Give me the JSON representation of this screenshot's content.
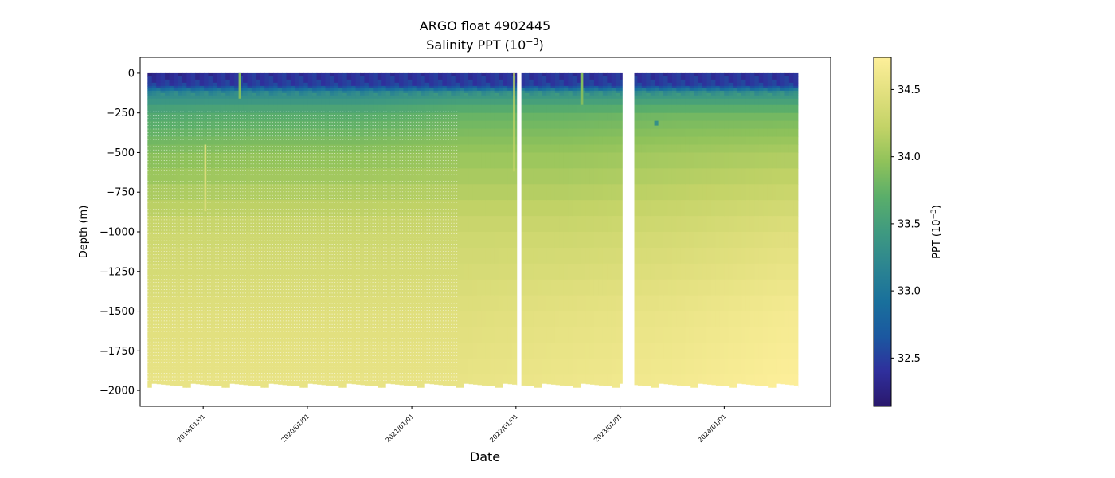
{
  "chart_data": {
    "type": "heatmap",
    "title": "ARGO float 4902445",
    "subtitle": "Salinity PPT (10",
    "subtitle_sup": "−3",
    "subtitle_tail": ")",
    "xlabel": "Date",
    "ylabel": "Depth (m)",
    "colorbar_label": "PPT (10",
    "colorbar_label_sup": "−3",
    "colorbar_label_tail": ")",
    "colormap": "haline",
    "colormap_stops": [
      "#2a186c",
      "#2f2f9c",
      "#1b58a0",
      "#19709c",
      "#2c8591",
      "#3f9a80",
      "#5aae6a",
      "#8fc25a",
      "#c3d367",
      "#e2e07f",
      "#fdef9a"
    ],
    "color_range": [
      32.14,
      34.74
    ],
    "x_range": [
      "2018-05-25",
      "2025-01-08"
    ],
    "y_range": [
      -2100,
      100
    ],
    "x_ticks": [
      {
        "date": "2019-01-01",
        "label": "2019/01/01"
      },
      {
        "date": "2020-01-01",
        "label": "2020/01/01"
      },
      {
        "date": "2021-01-01",
        "label": "2021/01/01"
      },
      {
        "date": "2022-01-01",
        "label": "2022/01/01"
      },
      {
        "date": "2023-01-01",
        "label": "2023/01/01"
      },
      {
        "date": "2024-01-01",
        "label": "2024/01/01"
      }
    ],
    "y_ticks": [
      {
        "value": 0,
        "label": "0"
      },
      {
        "value": -250,
        "label": "−250"
      },
      {
        "value": -500,
        "label": "−500"
      },
      {
        "value": -750,
        "label": "−750"
      },
      {
        "value": -1000,
        "label": "−1000"
      },
      {
        "value": -1250,
        "label": "−1250"
      },
      {
        "value": -1500,
        "label": "−1500"
      },
      {
        "value": -1750,
        "label": "−1750"
      },
      {
        "value": -2000,
        "label": "−2000"
      }
    ],
    "colorbar_ticks": [
      {
        "value": 32.5,
        "label": "32.5"
      },
      {
        "value": 33.0,
        "label": "33.0"
      },
      {
        "value": 33.5,
        "label": "33.5"
      },
      {
        "value": 34.0,
        "label": "34.0"
      },
      {
        "value": 34.5,
        "label": "34.5"
      }
    ],
    "data_time_range": [
      "2018-06-20",
      "2024-09-15"
    ],
    "max_depth": -1980,
    "data_gaps": [
      {
        "start": "2022-01-05",
        "end": "2022-01-20"
      },
      {
        "start": "2023-01-10",
        "end": "2023-02-20"
      }
    ],
    "sparse_until": "2021-06-15",
    "profiles": [
      {
        "date": "2018-07-01",
        "salinity": [
          [
            0,
            32.3
          ],
          [
            -80,
            32.5
          ],
          [
            -120,
            33.2
          ],
          [
            -250,
            33.6
          ],
          [
            -500,
            33.9
          ],
          [
            -1000,
            34.3
          ],
          [
            -1500,
            34.45
          ],
          [
            -2000,
            34.55
          ]
        ]
      },
      {
        "date": "2019-07-01",
        "salinity": [
          [
            0,
            32.4
          ],
          [
            -80,
            32.5
          ],
          [
            -120,
            33.2
          ],
          [
            -250,
            33.65
          ],
          [
            -500,
            33.95
          ],
          [
            -1000,
            34.3
          ],
          [
            -1500,
            34.45
          ],
          [
            -2000,
            34.55
          ]
        ]
      },
      {
        "date": "2020-07-01",
        "salinity": [
          [
            0,
            32.4
          ],
          [
            -80,
            32.5
          ],
          [
            -120,
            33.2
          ],
          [
            -250,
            33.65
          ],
          [
            -500,
            33.95
          ],
          [
            -1000,
            34.3
          ],
          [
            -1500,
            34.45
          ],
          [
            -2000,
            34.55
          ]
        ]
      },
      {
        "date": "2021-07-01",
        "salinity": [
          [
            0,
            32.4
          ],
          [
            -80,
            32.5
          ],
          [
            -120,
            33.3
          ],
          [
            -250,
            33.75
          ],
          [
            -500,
            34.0
          ],
          [
            -1000,
            34.3
          ],
          [
            -1500,
            34.45
          ],
          [
            -2000,
            34.55
          ]
        ]
      },
      {
        "date": "2022-07-01",
        "salinity": [
          [
            0,
            32.4
          ],
          [
            -80,
            32.5
          ],
          [
            -120,
            33.3
          ],
          [
            -250,
            33.75
          ],
          [
            -500,
            34.0
          ],
          [
            -1000,
            34.3
          ],
          [
            -1500,
            34.5
          ],
          [
            -2000,
            34.6
          ]
        ]
      },
      {
        "date": "2023-07-01",
        "salinity": [
          [
            0,
            32.4
          ],
          [
            -80,
            32.5
          ],
          [
            -120,
            33.3
          ],
          [
            -250,
            33.8
          ],
          [
            -500,
            34.05
          ],
          [
            -1000,
            34.35
          ],
          [
            -1500,
            34.55
          ],
          [
            -2000,
            34.65
          ]
        ]
      },
      {
        "date": "2024-08-01",
        "salinity": [
          [
            0,
            32.4
          ],
          [
            -80,
            32.5
          ],
          [
            -120,
            33.3
          ],
          [
            -250,
            33.8
          ],
          [
            -500,
            34.1
          ],
          [
            -1000,
            34.45
          ],
          [
            -1500,
            34.65
          ],
          [
            -2000,
            34.74
          ]
        ]
      }
    ],
    "anomalies": [
      {
        "start": "2019-01-05",
        "end": "2019-01-12",
        "top": -450,
        "bottom": -870,
        "salinity": 34.4
      },
      {
        "start": "2019-05-05",
        "end": "2019-05-12",
        "top": 0,
        "bottom": -160,
        "salinity": 33.9
      },
      {
        "start": "2021-12-22",
        "end": "2021-12-29",
        "top": 0,
        "bottom": -620,
        "salinity": 34.2
      },
      {
        "start": "2022-08-15",
        "end": "2022-08-25",
        "top": 0,
        "bottom": -200,
        "salinity": 33.9
      },
      {
        "start": "2023-05-01",
        "end": "2023-05-15",
        "top": -300,
        "bottom": -330,
        "salinity": 33.3
      }
    ]
  }
}
